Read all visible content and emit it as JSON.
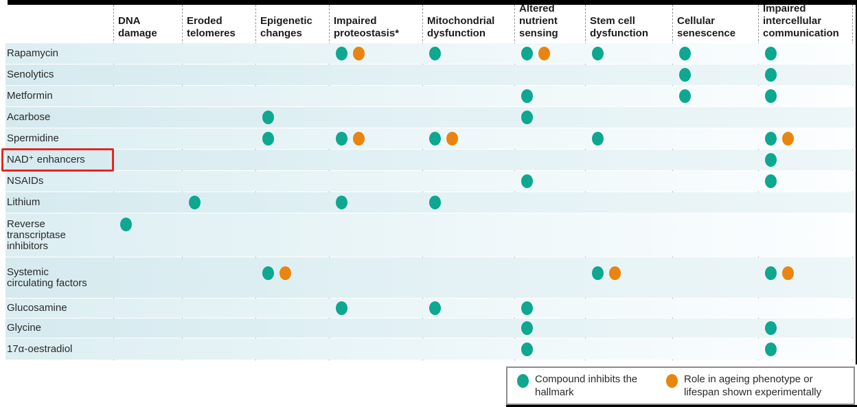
{
  "figure": {
    "highlight": {
      "target_row": "NAD⁺ enhancers",
      "shape": "red-box",
      "color": "#e7251d"
    }
  },
  "colors": {
    "teal": "#0ea78f",
    "orange": "#e9850f",
    "highlight_red": "#e7251d",
    "dashed_line": "#8f989c",
    "header_text": "#1c1c1c",
    "label_text": "#2a2a2a",
    "legend_border": "#8c8c8c",
    "frame_black": "#000000"
  },
  "legend": {
    "items": [
      {
        "key": "inhibits",
        "color": "teal",
        "label": "Compound inhibits the hallmark"
      },
      {
        "key": "experimental",
        "color": "orange",
        "label": "Role in ageing phenotype or lifespan shown experimentally"
      }
    ]
  },
  "chart_data": {
    "type": "heatmap",
    "title": "",
    "legend_position": "bottom-right",
    "columns": [
      "DNA damage",
      "Eroded telomeres",
      "Epigenetic changes",
      "Impaired proteostasis*",
      "Mitochondrial dysfunction",
      "Altered nutrient sensing",
      "Stem cell dysfunction",
      "Cellular senescence",
      "Impaired intercellular communication"
    ],
    "rows": [
      "Rapamycin",
      "Senolytics",
      "Metformin",
      "Acarbose",
      "Spermidine",
      "NAD⁺ enhancers",
      "NSAIDs",
      "Lithium",
      "Reverse transcriptase inhibitors",
      "Systemic circulating factors",
      "Glucosamine",
      "Glycine",
      "17α-oestradiol"
    ],
    "cell_marks": [
      {
        "row": "Rapamycin",
        "marks": [
          {
            "col": "Impaired proteostasis*",
            "dots": [
              "inhibits",
              "experimental"
            ]
          },
          {
            "col": "Mitochondrial dysfunction",
            "dots": [
              "inhibits"
            ]
          },
          {
            "col": "Altered nutrient sensing",
            "dots": [
              "inhibits",
              "experimental"
            ]
          },
          {
            "col": "Stem cell dysfunction",
            "dots": [
              "inhibits"
            ]
          },
          {
            "col": "Cellular senescence",
            "dots": [
              "inhibits"
            ]
          },
          {
            "col": "Impaired intercellular communication",
            "dots": [
              "inhibits"
            ]
          }
        ]
      },
      {
        "row": "Senolytics",
        "marks": [
          {
            "col": "Cellular senescence",
            "dots": [
              "inhibits"
            ]
          },
          {
            "col": "Impaired intercellular communication",
            "dots": [
              "inhibits"
            ]
          }
        ]
      },
      {
        "row": "Metformin",
        "marks": [
          {
            "col": "Altered nutrient sensing",
            "dots": [
              "inhibits"
            ]
          },
          {
            "col": "Cellular senescence",
            "dots": [
              "inhibits"
            ]
          },
          {
            "col": "Impaired intercellular communication",
            "dots": [
              "inhibits"
            ]
          }
        ]
      },
      {
        "row": "Acarbose",
        "marks": [
          {
            "col": "Epigenetic changes",
            "dots": [
              "inhibits"
            ]
          },
          {
            "col": "Altered nutrient sensing",
            "dots": [
              "inhibits"
            ]
          }
        ]
      },
      {
        "row": "Spermidine",
        "marks": [
          {
            "col": "Epigenetic changes",
            "dots": [
              "inhibits"
            ]
          },
          {
            "col": "Impaired proteostasis*",
            "dots": [
              "inhibits",
              "experimental"
            ]
          },
          {
            "col": "Mitochondrial dysfunction",
            "dots": [
              "inhibits",
              "experimental"
            ]
          },
          {
            "col": "Stem cell dysfunction",
            "dots": [
              "inhibits"
            ]
          },
          {
            "col": "Impaired intercellular communication",
            "dots": [
              "inhibits",
              "experimental"
            ]
          }
        ]
      },
      {
        "row": "NAD⁺ enhancers",
        "marks": [
          {
            "col": "Impaired intercellular communication",
            "dots": [
              "inhibits"
            ]
          }
        ]
      },
      {
        "row": "NSAIDs",
        "marks": [
          {
            "col": "Altered nutrient sensing",
            "dots": [
              "inhibits"
            ]
          },
          {
            "col": "Impaired intercellular communication",
            "dots": [
              "inhibits"
            ]
          }
        ]
      },
      {
        "row": "Lithium",
        "marks": [
          {
            "col": "Eroded telomeres",
            "dots": [
              "inhibits"
            ]
          },
          {
            "col": "Impaired proteostasis*",
            "dots": [
              "inhibits"
            ]
          },
          {
            "col": "Mitochondrial dysfunction",
            "dots": [
              "inhibits"
            ]
          }
        ]
      },
      {
        "row": "Reverse transcriptase inhibitors",
        "marks": [
          {
            "col": "DNA damage",
            "dots": [
              "inhibits"
            ]
          }
        ]
      },
      {
        "row": "Systemic circulating factors",
        "marks": [
          {
            "col": "Epigenetic changes",
            "dots": [
              "inhibits",
              "experimental"
            ]
          },
          {
            "col": "Stem cell dysfunction",
            "dots": [
              "inhibits",
              "experimental"
            ]
          },
          {
            "col": "Impaired intercellular communication",
            "dots": [
              "inhibits",
              "experimental"
            ]
          }
        ]
      },
      {
        "row": "Glucosamine",
        "marks": [
          {
            "col": "Impaired proteostasis*",
            "dots": [
              "inhibits"
            ]
          },
          {
            "col": "Mitochondrial dysfunction",
            "dots": [
              "inhibits"
            ]
          },
          {
            "col": "Altered nutrient sensing",
            "dots": [
              "inhibits"
            ]
          }
        ]
      },
      {
        "row": "Glycine",
        "marks": [
          {
            "col": "Altered nutrient sensing",
            "dots": [
              "inhibits"
            ]
          },
          {
            "col": "Impaired intercellular communication",
            "dots": [
              "inhibits"
            ]
          }
        ]
      },
      {
        "row": "17α-oestradiol",
        "marks": [
          {
            "col": "Altered nutrient sensing",
            "dots": [
              "inhibits"
            ]
          },
          {
            "col": "Impaired intercellular communication",
            "dots": [
              "inhibits"
            ]
          }
        ]
      }
    ]
  }
}
